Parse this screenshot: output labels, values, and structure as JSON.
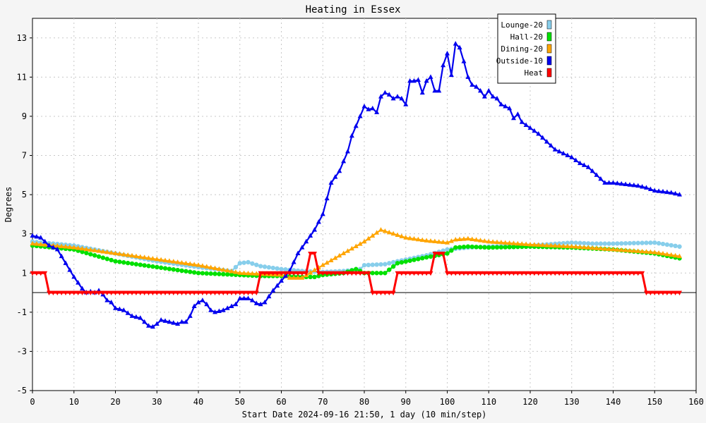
{
  "chart_data": {
    "type": "line",
    "title": "Heating in Essex",
    "xlabel": "Start Date 2024-09-16 21:50, 1 day (10 min/step)",
    "ylabel": "Degrees",
    "xlim": [
      0,
      160
    ],
    "ylim": [
      -5,
      14
    ],
    "x_ticks": [
      0,
      10,
      20,
      30,
      40,
      50,
      60,
      70,
      80,
      90,
      100,
      110,
      120,
      130,
      140,
      150,
      160
    ],
    "y_ticks": [
      -5,
      -3,
      -1,
      1,
      3,
      5,
      7,
      9,
      11,
      13
    ],
    "grid": true,
    "legend_position": "top-right",
    "colors": {
      "Lounge-20": "#87ceeb",
      "Hall-20": "#00e000",
      "Dining-20": "#ffa500",
      "Outside-10": "#0000ee",
      "Heat": "#ff0000"
    },
    "series": [
      {
        "name": "Lounge-20",
        "marker": "circle",
        "points": [
          [
            0,
            2.6
          ],
          [
            10,
            2.4
          ],
          [
            20,
            2.0
          ],
          [
            30,
            1.6
          ],
          [
            40,
            1.3
          ],
          [
            48,
            1.1
          ],
          [
            50,
            1.5
          ],
          [
            52,
            1.55
          ],
          [
            55,
            1.35
          ],
          [
            60,
            1.2
          ],
          [
            65,
            1.1
          ],
          [
            70,
            1.05
          ],
          [
            75,
            1.1
          ],
          [
            79,
            1.2
          ],
          [
            80,
            1.4
          ],
          [
            85,
            1.45
          ],
          [
            88,
            1.6
          ],
          [
            95,
            1.9
          ],
          [
            100,
            2.2
          ],
          [
            105,
            2.3
          ],
          [
            110,
            2.35
          ],
          [
            120,
            2.4
          ],
          [
            130,
            2.55
          ],
          [
            135,
            2.5
          ],
          [
            140,
            2.5
          ],
          [
            150,
            2.55
          ],
          [
            156,
            2.35
          ]
        ]
      },
      {
        "name": "Hall-20",
        "marker": "circle",
        "points": [
          [
            0,
            2.4
          ],
          [
            10,
            2.2
          ],
          [
            15,
            1.9
          ],
          [
            20,
            1.6
          ],
          [
            30,
            1.3
          ],
          [
            40,
            1.0
          ],
          [
            50,
            0.9
          ],
          [
            55,
            0.85
          ],
          [
            60,
            0.85
          ],
          [
            65,
            0.8
          ],
          [
            68,
            0.8
          ],
          [
            70,
            0.9
          ],
          [
            75,
            1.0
          ],
          [
            78,
            1.2
          ],
          [
            80,
            1.0
          ],
          [
            85,
            1.0
          ],
          [
            88,
            1.5
          ],
          [
            95,
            1.8
          ],
          [
            100,
            2.0
          ],
          [
            102,
            2.3
          ],
          [
            105,
            2.35
          ],
          [
            110,
            2.3
          ],
          [
            120,
            2.35
          ],
          [
            130,
            2.3
          ],
          [
            140,
            2.2
          ],
          [
            150,
            2.0
          ],
          [
            156,
            1.75
          ]
        ]
      },
      {
        "name": "Dining-20",
        "marker": "triangle",
        "points": [
          [
            0,
            2.5
          ],
          [
            10,
            2.3
          ],
          [
            20,
            2.0
          ],
          [
            30,
            1.7
          ],
          [
            40,
            1.4
          ],
          [
            50,
            1.0
          ],
          [
            55,
            0.95
          ],
          [
            60,
            0.9
          ],
          [
            62,
            0.75
          ],
          [
            65,
            0.75
          ],
          [
            70,
            1.4
          ],
          [
            75,
            2.0
          ],
          [
            80,
            2.6
          ],
          [
            84,
            3.2
          ],
          [
            87,
            3.0
          ],
          [
            90,
            2.8
          ],
          [
            95,
            2.65
          ],
          [
            100,
            2.55
          ],
          [
            102,
            2.7
          ],
          [
            105,
            2.75
          ],
          [
            110,
            2.6
          ],
          [
            120,
            2.45
          ],
          [
            130,
            2.35
          ],
          [
            140,
            2.2
          ],
          [
            150,
            2.05
          ],
          [
            156,
            1.85
          ]
        ]
      },
      {
        "name": "Outside-10",
        "marker": "triangle",
        "points": [
          [
            0,
            2.9
          ],
          [
            2,
            2.8
          ],
          [
            4,
            2.4
          ],
          [
            6,
            2.2
          ],
          [
            8,
            1.5
          ],
          [
            10,
            0.8
          ],
          [
            12,
            0.2
          ],
          [
            13,
            0.0
          ],
          [
            14,
            0.05
          ],
          [
            15,
            0.0
          ],
          [
            16,
            0.1
          ],
          [
            17,
            -0.1
          ],
          [
            18,
            -0.4
          ],
          [
            19,
            -0.5
          ],
          [
            20,
            -0.8
          ],
          [
            22,
            -0.9
          ],
          [
            24,
            -1.2
          ],
          [
            26,
            -1.3
          ],
          [
            28,
            -1.7
          ],
          [
            29,
            -1.75
          ],
          [
            30,
            -1.6
          ],
          [
            31,
            -1.4
          ],
          [
            33,
            -1.5
          ],
          [
            35,
            -1.6
          ],
          [
            36,
            -1.5
          ],
          [
            37,
            -1.5
          ],
          [
            38,
            -1.2
          ],
          [
            39,
            -0.7
          ],
          [
            40,
            -0.5
          ],
          [
            41,
            -0.4
          ],
          [
            42,
            -0.6
          ],
          [
            43,
            -0.9
          ],
          [
            44,
            -1.0
          ],
          [
            46,
            -0.9
          ],
          [
            48,
            -0.7
          ],
          [
            49,
            -0.6
          ],
          [
            50,
            -0.3
          ],
          [
            52,
            -0.3
          ],
          [
            53,
            -0.4
          ],
          [
            54,
            -0.55
          ],
          [
            55,
            -0.6
          ],
          [
            56,
            -0.5
          ],
          [
            57,
            -0.2
          ],
          [
            58,
            0.1
          ],
          [
            60,
            0.6
          ],
          [
            62,
            1.1
          ],
          [
            64,
            2.0
          ],
          [
            66,
            2.6
          ],
          [
            68,
            3.2
          ],
          [
            70,
            4.0
          ],
          [
            71,
            4.8
          ],
          [
            72,
            5.6
          ],
          [
            74,
            6.2
          ],
          [
            75,
            6.7
          ],
          [
            76,
            7.2
          ],
          [
            77,
            8.0
          ],
          [
            78,
            8.5
          ],
          [
            79,
            9.0
          ],
          [
            80,
            9.5
          ],
          [
            81,
            9.35
          ],
          [
            82,
            9.4
          ],
          [
            83,
            9.2
          ],
          [
            84,
            10.0
          ],
          [
            85,
            10.2
          ],
          [
            86,
            10.1
          ],
          [
            87,
            9.9
          ],
          [
            88,
            10.0
          ],
          [
            89,
            9.9
          ],
          [
            90,
            9.6
          ],
          [
            91,
            10.8
          ],
          [
            92,
            10.8
          ],
          [
            93,
            10.85
          ],
          [
            94,
            10.2
          ],
          [
            95,
            10.8
          ],
          [
            96,
            11.0
          ],
          [
            97,
            10.3
          ],
          [
            98,
            10.3
          ],
          [
            99,
            11.6
          ],
          [
            100,
            12.2
          ],
          [
            101,
            11.1
          ],
          [
            102,
            12.7
          ],
          [
            103,
            12.5
          ],
          [
            104,
            11.8
          ],
          [
            105,
            11.0
          ],
          [
            106,
            10.6
          ],
          [
            107,
            10.5
          ],
          [
            108,
            10.3
          ],
          [
            109,
            10.0
          ],
          [
            110,
            10.3
          ],
          [
            111,
            10.0
          ],
          [
            112,
            9.9
          ],
          [
            113,
            9.6
          ],
          [
            114,
            9.5
          ],
          [
            115,
            9.4
          ],
          [
            116,
            8.9
          ],
          [
            117,
            9.1
          ],
          [
            118,
            8.7
          ],
          [
            120,
            8.4
          ],
          [
            122,
            8.1
          ],
          [
            124,
            7.7
          ],
          [
            126,
            7.3
          ],
          [
            128,
            7.1
          ],
          [
            130,
            6.9
          ],
          [
            132,
            6.6
          ],
          [
            134,
            6.4
          ],
          [
            136,
            6.0
          ],
          [
            138,
            5.6
          ],
          [
            140,
            5.6
          ],
          [
            142,
            5.55
          ],
          [
            144,
            5.5
          ],
          [
            146,
            5.45
          ],
          [
            148,
            5.35
          ],
          [
            150,
            5.2
          ],
          [
            152,
            5.15
          ],
          [
            154,
            5.1
          ],
          [
            156,
            5.0
          ]
        ]
      },
      {
        "name": "Heat",
        "marker": "down-triangle",
        "points": [
          [
            0,
            1
          ],
          [
            3,
            1
          ],
          [
            4,
            0
          ],
          [
            54,
            0
          ],
          [
            55,
            1
          ],
          [
            66,
            1
          ],
          [
            67,
            2
          ],
          [
            68,
            2
          ],
          [
            69,
            1
          ],
          [
            81,
            1
          ],
          [
            82,
            0
          ],
          [
            87,
            0
          ],
          [
            88,
            1
          ],
          [
            96,
            1
          ],
          [
            97,
            2
          ],
          [
            99,
            2
          ],
          [
            100,
            1
          ],
          [
            147,
            1
          ],
          [
            148,
            0
          ],
          [
            156,
            0
          ]
        ]
      }
    ]
  }
}
